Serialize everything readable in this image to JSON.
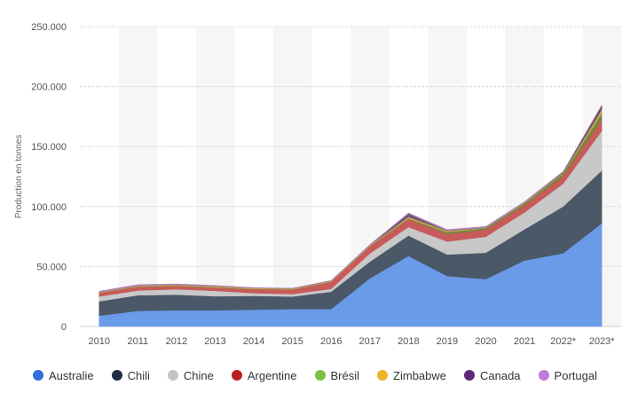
{
  "chart_data": {
    "type": "area",
    "stacked": true,
    "x": [
      "2010",
      "2011",
      "2012",
      "2013",
      "2014",
      "2015",
      "2016",
      "2017",
      "2018",
      "2019",
      "2020",
      "2021",
      "2022*",
      "2023*"
    ],
    "ylabel": "Production en tonnes",
    "ylim": [
      0,
      250000
    ],
    "yticks": [
      0,
      50000,
      100000,
      150000,
      200000,
      250000
    ],
    "ytick_labels": [
      "0",
      "50.000",
      "100.000",
      "150.000",
      "200.000",
      "250.000"
    ],
    "grid": true,
    "legend_position": "bottom",
    "series": [
      {
        "name": "Australie",
        "color": "#6a9be8",
        "values": [
          9000,
          13000,
          13500,
          13500,
          14000,
          14500,
          14500,
          40000,
          58800,
          42000,
          39500,
          55000,
          61000,
          86000
        ]
      },
      {
        "name": "Chili",
        "color": "#4a5868",
        "values": [
          12000,
          13000,
          13000,
          11700,
          11500,
          10500,
          14500,
          14000,
          17000,
          18000,
          22000,
          26000,
          39000,
          44000
        ]
      },
      {
        "name": "Chine",
        "color": "#c8c8c8",
        "values": [
          4000,
          4000,
          4500,
          4500,
          2300,
          2000,
          2300,
          6800,
          7100,
          10800,
          13300,
          14000,
          19000,
          33000
        ]
      },
      {
        "name": "Argentine",
        "color": "#c85a5a",
        "values": [
          2900,
          3000,
          2700,
          2500,
          3200,
          3600,
          5700,
          5700,
          6400,
          6300,
          5900,
          5967,
          6200,
          9600
        ]
      },
      {
        "name": "Brésil",
        "color": "#6e8a3a",
        "values": [
          200,
          300,
          200,
          400,
          200,
          200,
          200,
          200,
          600,
          1400,
          1400,
          1500,
          2200,
          4900
        ]
      },
      {
        "name": "Zimbabwe",
        "color": "#c8a050",
        "values": [
          500,
          800,
          1000,
          1000,
          900,
          900,
          800,
          800,
          1600,
          1200,
          400,
          700,
          800,
          3400
        ]
      },
      {
        "name": "Canada",
        "color": "#6a5070",
        "values": [
          0,
          0,
          0,
          0,
          0,
          0,
          0,
          0,
          2400,
          200,
          0,
          0,
          500,
          3400
        ]
      },
      {
        "name": "Portugal",
        "color": "#b080b8",
        "values": [
          800,
          800,
          600,
          600,
          300,
          200,
          400,
          800,
          800,
          900,
          900,
          900,
          600,
          380
        ]
      }
    ]
  },
  "legend": [
    {
      "label": "Australie",
      "color": "#2f6fd6"
    },
    {
      "label": "Chili",
      "color": "#1f2d44"
    },
    {
      "label": "Chine",
      "color": "#c4c4c4"
    },
    {
      "label": "Argentine",
      "color": "#b8201f"
    },
    {
      "label": "Brésil",
      "color": "#7ac142"
    },
    {
      "label": "Zimbabwe",
      "color": "#f0b429"
    },
    {
      "label": "Canada",
      "color": "#5a2a78"
    },
    {
      "label": "Portugal",
      "color": "#c27ad8"
    }
  ]
}
